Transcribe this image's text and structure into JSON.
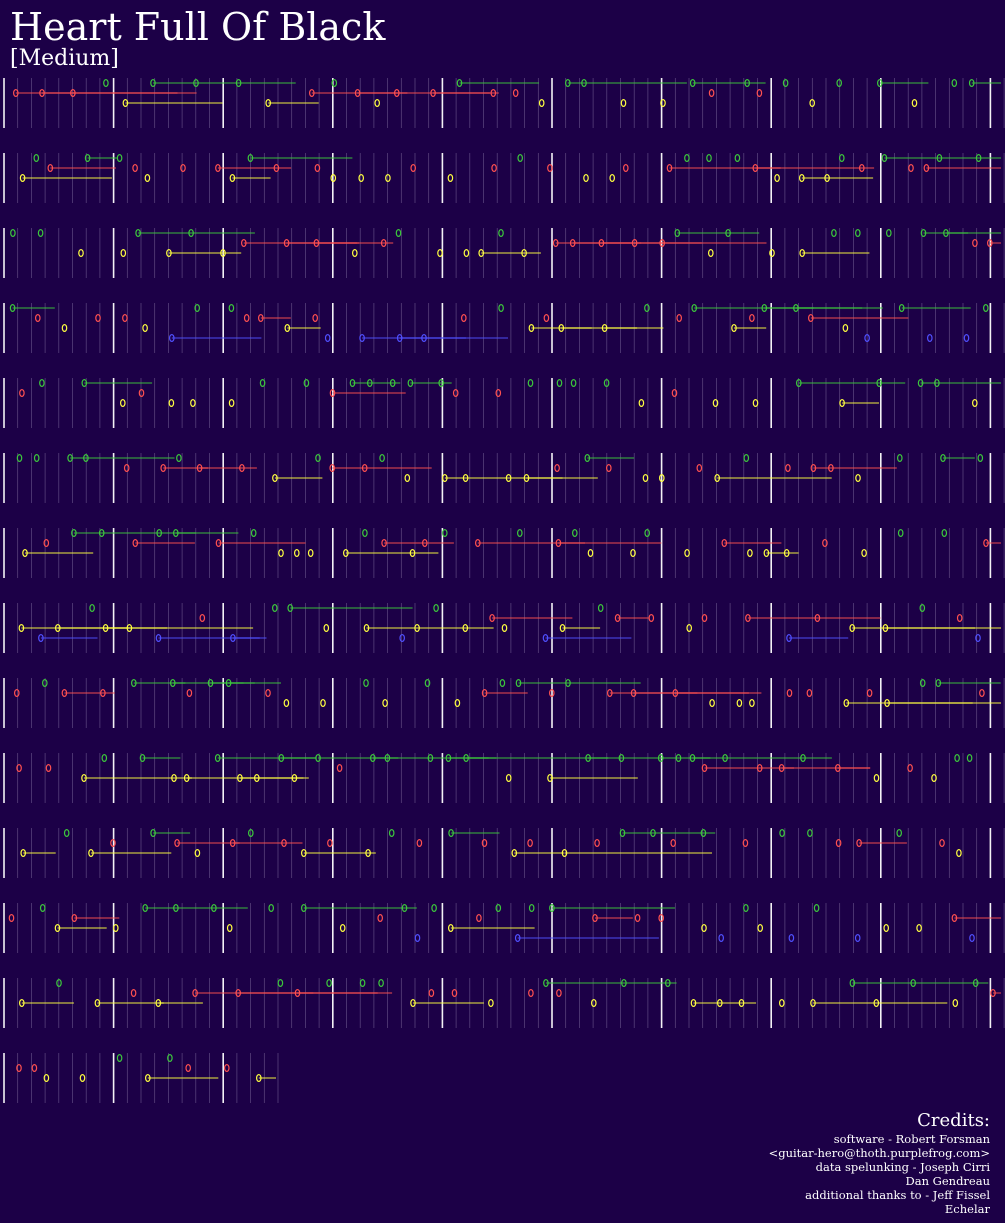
{
  "title": "Heart Full Of Black",
  "difficulty": "[Medium]",
  "credits": {
    "heading": "Credits:",
    "lines": [
      "software - Robert Forsman",
      "<guitar-hero@thoth.purplefrog.com>",
      "data spelunking - Joseph Cirri",
      "Dan Gendreau",
      "additional thanks to - Jeff Fissel",
      "Echelar"
    ]
  },
  "colors": {
    "background": "#1c0047",
    "green": "#3cc83c",
    "red": "#ff5050",
    "yellow": "#ffff40",
    "blue": "#5050ff",
    "barline": "#ffffff",
    "beatline": "#8c7aa8"
  }
}
